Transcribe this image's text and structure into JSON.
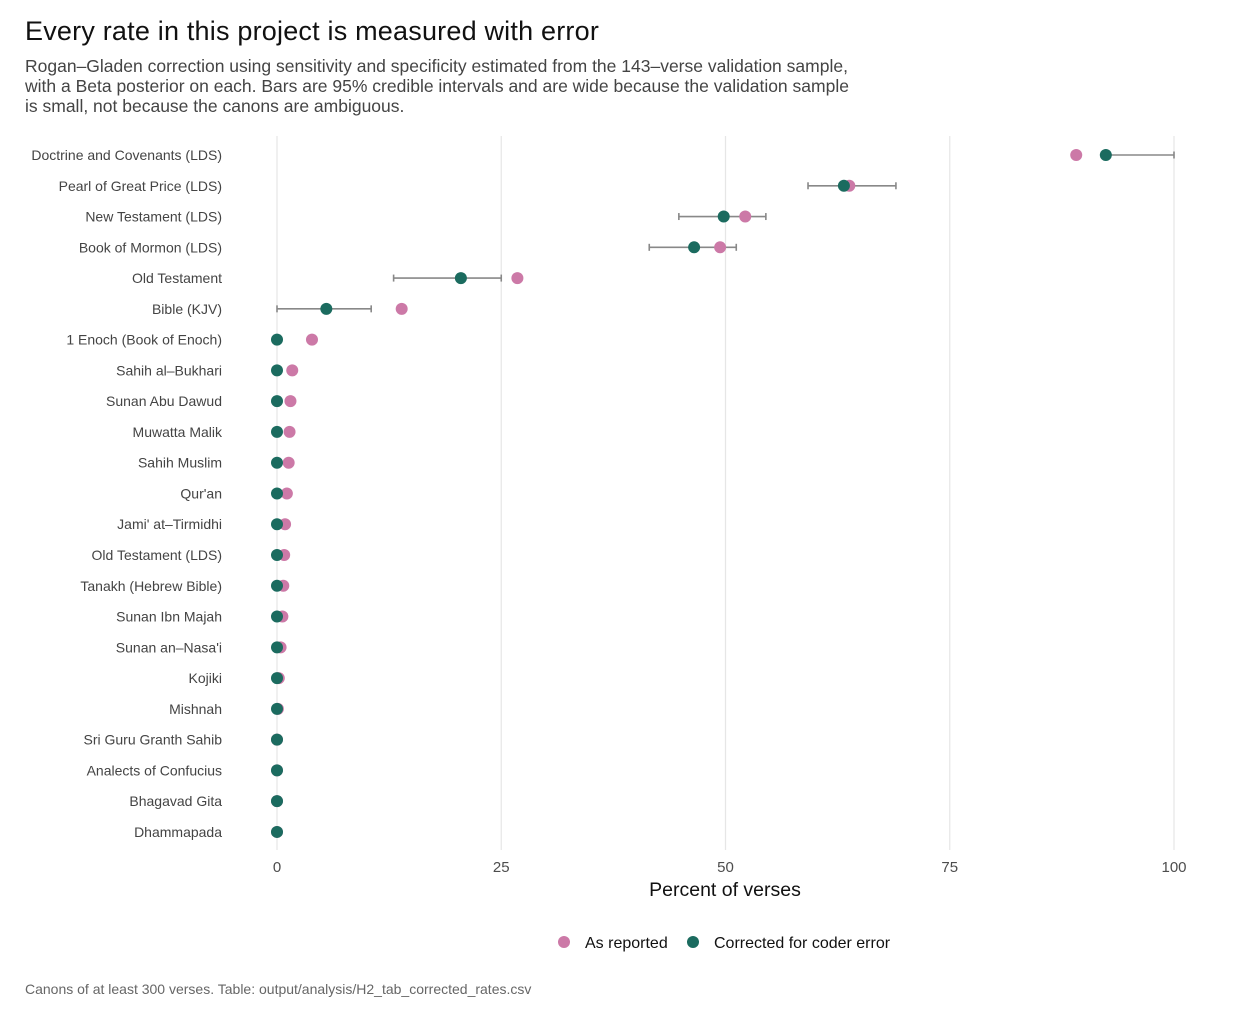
{
  "title": "Every rate in this project is measured with error",
  "subtitle": "Rogan–Gladen correction using sensitivity and specificity estimated from the 143–verse validation sample, with a Beta posterior on each. Bars are 95% credible intervals and are wide because the validation sample is small, not because the canons are ambiguous.",
  "caption": "Canons of at least 300 verses. Table: output/analysis/H2_tab_corrected_rates.csv",
  "colors": {
    "reported": "#cc79a7",
    "corrected": "#1b6b5f",
    "interval": "#888888",
    "grid": "#e6e6e6"
  },
  "chart_data": {
    "type": "dot-interval",
    "xlabel": "Percent of verses",
    "xlim": [
      0,
      100
    ],
    "xticks": [
      0,
      25,
      50,
      75,
      100
    ],
    "grid": true,
    "legend_position": "bottom",
    "series_names": {
      "reported": "As reported",
      "corrected": "Corrected for coder error"
    },
    "rows": [
      {
        "canon": "Doctrine and Covenants (LDS)",
        "reported": 89.1,
        "corrected": 92.4,
        "lo": 92.4,
        "hi": 100
      },
      {
        "canon": "Pearl of Great Price (LDS)",
        "reported": 63.8,
        "corrected": 63.2,
        "lo": 59.2,
        "hi": 69.0
      },
      {
        "canon": "New Testament (LDS)",
        "reported": 52.2,
        "corrected": 49.8,
        "lo": 44.8,
        "hi": 54.5
      },
      {
        "canon": "Book of Mormon (LDS)",
        "reported": 49.4,
        "corrected": 46.5,
        "lo": 41.5,
        "hi": 51.2
      },
      {
        "canon": "Old Testament",
        "reported": 26.8,
        "corrected": 20.5,
        "lo": 13.0,
        "hi": 25.0
      },
      {
        "canon": "Bible (KJV)",
        "reported": 13.9,
        "corrected": 5.5,
        "lo": 0,
        "hi": 10.5
      },
      {
        "canon": "1 Enoch (Book of Enoch)",
        "reported": 3.9,
        "corrected": 0,
        "lo": null,
        "hi": null
      },
      {
        "canon": "Sahih al–Bukhari",
        "reported": 1.7,
        "corrected": 0,
        "lo": null,
        "hi": null
      },
      {
        "canon": "Sunan Abu Dawud",
        "reported": 1.5,
        "corrected": 0,
        "lo": null,
        "hi": null
      },
      {
        "canon": "Muwatta Malik",
        "reported": 1.4,
        "corrected": 0,
        "lo": null,
        "hi": null
      },
      {
        "canon": "Sahih Muslim",
        "reported": 1.3,
        "corrected": 0,
        "lo": null,
        "hi": null
      },
      {
        "canon": "Qur'an",
        "reported": 1.1,
        "corrected": 0,
        "lo": null,
        "hi": null
      },
      {
        "canon": "Jami' at–Tirmidhi",
        "reported": 0.9,
        "corrected": 0,
        "lo": null,
        "hi": null
      },
      {
        "canon": "Old Testament (LDS)",
        "reported": 0.8,
        "corrected": 0,
        "lo": null,
        "hi": null
      },
      {
        "canon": "Tanakh (Hebrew Bible)",
        "reported": 0.7,
        "corrected": 0,
        "lo": null,
        "hi": null
      },
      {
        "canon": "Sunan Ibn Majah",
        "reported": 0.6,
        "corrected": 0,
        "lo": null,
        "hi": null
      },
      {
        "canon": "Sunan an–Nasa'i",
        "reported": 0.4,
        "corrected": 0,
        "lo": null,
        "hi": null
      },
      {
        "canon": "Kojiki",
        "reported": 0.2,
        "corrected": 0,
        "lo": null,
        "hi": null
      },
      {
        "canon": "Mishnah",
        "reported": 0.1,
        "corrected": 0,
        "lo": null,
        "hi": null
      },
      {
        "canon": "Sri Guru Granth Sahib",
        "reported": 0.0,
        "corrected": 0,
        "lo": null,
        "hi": null
      },
      {
        "canon": "Analects of Confucius",
        "reported": 0.0,
        "corrected": 0,
        "lo": null,
        "hi": null
      },
      {
        "canon": "Bhagavad Gita",
        "reported": 0.0,
        "corrected": 0,
        "lo": null,
        "hi": null
      },
      {
        "canon": "Dhammapada",
        "reported": 0.0,
        "corrected": 0,
        "lo": null,
        "hi": null
      }
    ]
  }
}
